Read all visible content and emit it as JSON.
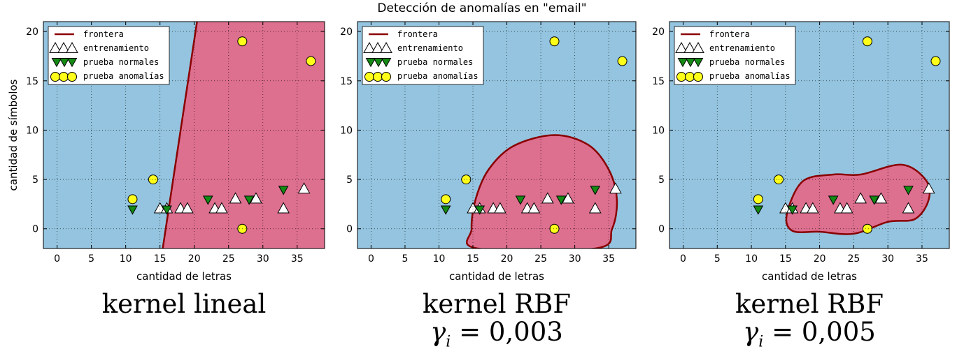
{
  "figure": {
    "title": "Detección de anomalías en \"email\""
  },
  "colors": {
    "inlier_region": "#94c4df",
    "outlier_region": "#dd6f8f",
    "boundary": "#8b0000",
    "train_marker": "#ffffff",
    "normal_marker": "#138b13",
    "anomaly_marker": "#ffff1a"
  },
  "panels": [
    {
      "caption": "kernel lineal",
      "gamma": "",
      "xlabel": "cantidad de letras",
      "ylabel": "cantidad de símbolos"
    },
    {
      "caption": "kernel RBF",
      "gamma": "0,003",
      "xlabel": "cantidad de letras",
      "ylabel": ""
    },
    {
      "caption": "kernel RBF",
      "gamma": "0,005",
      "xlabel": "cantidad de letras",
      "ylabel": ""
    }
  ],
  "legend": {
    "boundary": "frontera",
    "train": "entrenamiento",
    "normal": "prueba normales",
    "anomaly": "prueba anomalías"
  },
  "chart_data": [
    {
      "type": "scatter",
      "title": "",
      "xlabel": "cantidad de letras",
      "ylabel": "cantidad de símbolos",
      "xlim": [
        -2,
        39
      ],
      "ylim": [
        -2,
        21
      ],
      "xticks": [
        0,
        5,
        10,
        15,
        20,
        25,
        30,
        35
      ],
      "yticks": [
        0,
        5,
        10,
        15,
        20
      ],
      "grid": true,
      "legend_position": "top-left",
      "region": "linear",
      "boundary_line": [
        [
          20.4,
          21
        ],
        [
          15.4,
          -2
        ]
      ],
      "series": [
        {
          "name": "entrenamiento",
          "marker": "triangle-up",
          "x": [
            15,
            16,
            18,
            19,
            23,
            24,
            26,
            29,
            33,
            36
          ],
          "y": [
            2,
            2,
            2,
            2,
            2,
            2,
            3,
            3,
            2,
            4
          ]
        },
        {
          "name": "prueba normales",
          "marker": "triangle-down",
          "x": [
            11,
            16,
            22,
            28,
            33
          ],
          "y": [
            2,
            2,
            3,
            3,
            4
          ]
        },
        {
          "name": "prueba anomalías",
          "marker": "circle",
          "x": [
            11,
            14,
            27,
            27,
            37
          ],
          "y": [
            3,
            5,
            0,
            19,
            17
          ]
        }
      ]
    },
    {
      "type": "scatter",
      "title": "",
      "xlabel": "cantidad de letras",
      "ylabel": "",
      "xlim": [
        -2,
        39
      ],
      "ylim": [
        -2,
        21
      ],
      "xticks": [
        0,
        5,
        10,
        15,
        20,
        25,
        30,
        35
      ],
      "yticks": [
        0,
        5,
        10,
        15,
        20
      ],
      "grid": true,
      "legend_position": "top-left",
      "region": "closed",
      "boundary_curve": [
        [
          14.8,
          0
        ],
        [
          15.4,
          3
        ],
        [
          17.3,
          6
        ],
        [
          21,
          8.4
        ],
        [
          27,
          9.5
        ],
        [
          32,
          8.5
        ],
        [
          35,
          6
        ],
        [
          36.2,
          3
        ],
        [
          35.5,
          0
        ],
        [
          33,
          -2
        ],
        [
          15.7,
          -2
        ]
      ],
      "series": [
        {
          "name": "entrenamiento",
          "marker": "triangle-up",
          "x": [
            15,
            16,
            18,
            19,
            23,
            24,
            26,
            29,
            33,
            36
          ],
          "y": [
            2,
            2,
            2,
            2,
            2,
            2,
            3,
            3,
            2,
            4
          ]
        },
        {
          "name": "prueba normales",
          "marker": "triangle-down",
          "x": [
            11,
            16,
            22,
            28,
            33
          ],
          "y": [
            2,
            2,
            3,
            3,
            4
          ]
        },
        {
          "name": "prueba anomalías",
          "marker": "circle",
          "x": [
            11,
            14,
            27,
            27,
            37
          ],
          "y": [
            3,
            5,
            0,
            19,
            17
          ]
        }
      ]
    },
    {
      "type": "scatter",
      "title": "",
      "xlabel": "cantidad de letras",
      "ylabel": "",
      "xlim": [
        -2,
        39
      ],
      "ylim": [
        -2,
        21
      ],
      "xticks": [
        0,
        5,
        10,
        15,
        20,
        25,
        30,
        35
      ],
      "yticks": [
        0,
        5,
        10,
        15,
        20
      ],
      "grid": true,
      "legend_position": "top-left",
      "region": "closed",
      "boundary_curve": [
        [
          15.2,
          1.5
        ],
        [
          17.5,
          4.8
        ],
        [
          22,
          5.5
        ],
        [
          26,
          5.5
        ],
        [
          32,
          6.5
        ],
        [
          35.5,
          5
        ],
        [
          36,
          3
        ],
        [
          34,
          1
        ],
        [
          30,
          0.7
        ],
        [
          25,
          -0.5
        ],
        [
          20,
          -0.3
        ],
        [
          16,
          -0.2
        ]
      ],
      "series": [
        {
          "name": "entrenamiento",
          "marker": "triangle-up",
          "x": [
            15,
            16,
            18,
            19,
            23,
            24,
            26,
            29,
            33,
            36
          ],
          "y": [
            2,
            2,
            2,
            2,
            2,
            2,
            3,
            3,
            2,
            4
          ]
        },
        {
          "name": "prueba normales",
          "marker": "triangle-down",
          "x": [
            11,
            16,
            22,
            28,
            33
          ],
          "y": [
            2,
            2,
            3,
            3,
            4
          ]
        },
        {
          "name": "prueba anomalías",
          "marker": "circle",
          "x": [
            11,
            14,
            27,
            27,
            37
          ],
          "y": [
            3,
            5,
            0,
            19,
            17
          ]
        }
      ]
    }
  ]
}
